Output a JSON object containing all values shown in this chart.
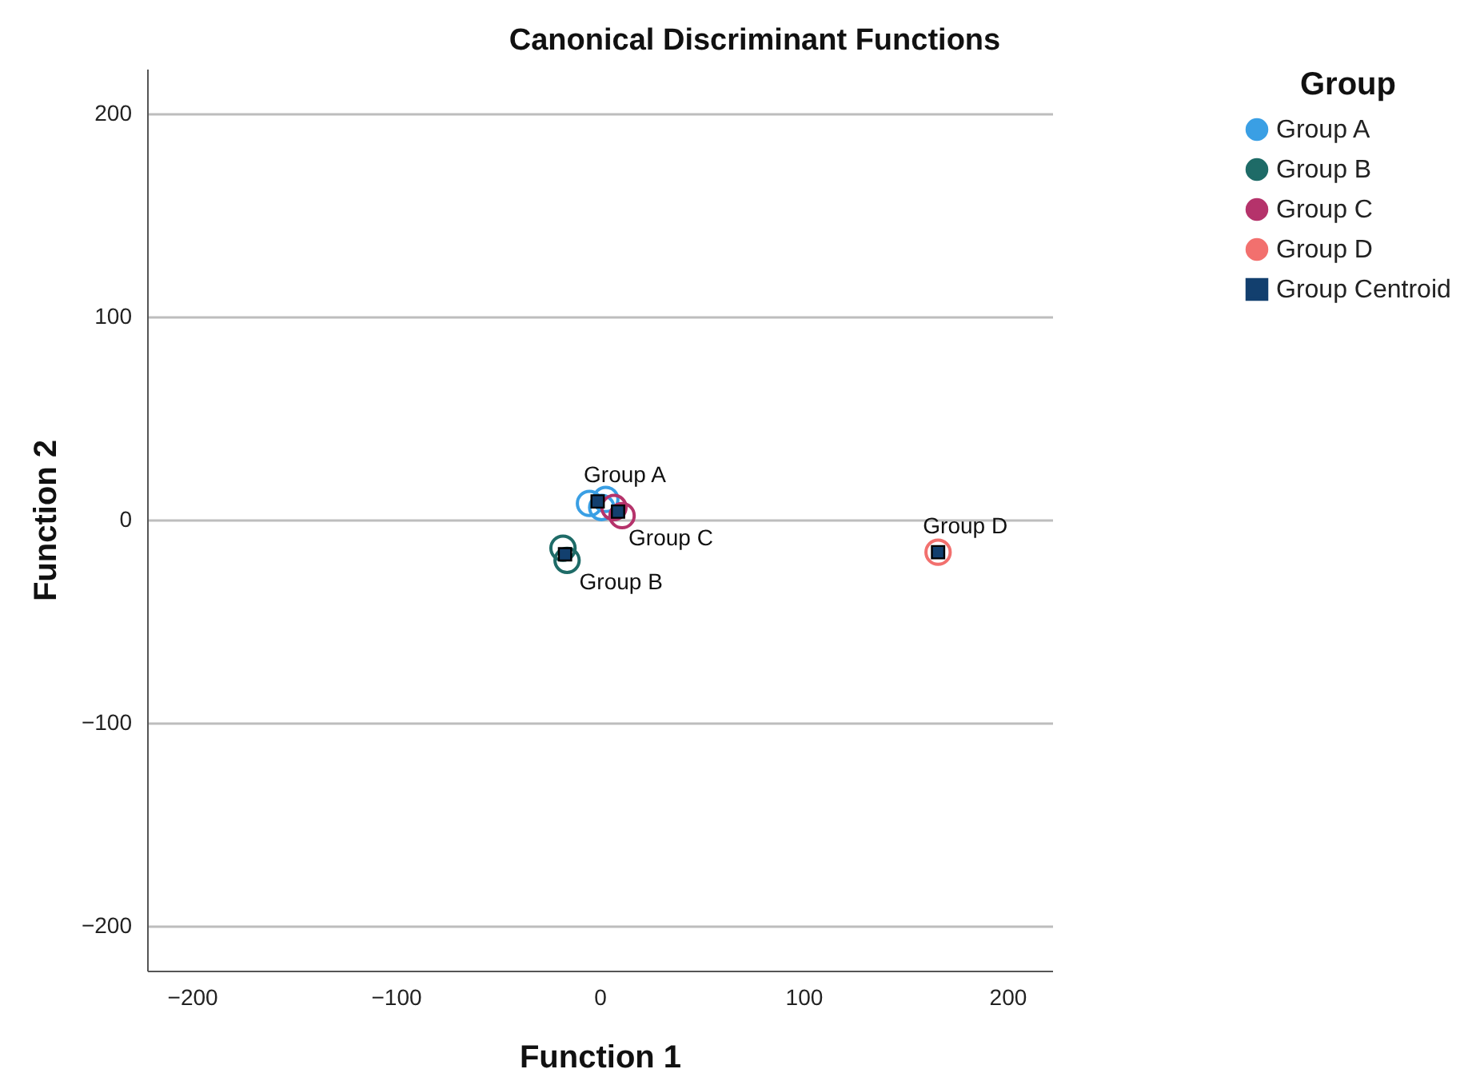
{
  "chart_data": {
    "type": "scatter",
    "title": "Canonical Discriminant Functions",
    "xlabel": "Function 1",
    "ylabel": "Function 2",
    "legend_title": "Group",
    "legend": "right",
    "grid": "y",
    "xlim": [
      -222,
      222
    ],
    "ylim": [
      -222,
      222
    ],
    "xticks": [
      -200,
      -100,
      0,
      100,
      200
    ],
    "yticks": [
      -200,
      -100,
      0,
      100,
      200
    ],
    "series": [
      {
        "name": "Group A",
        "color": "#3a9fe4",
        "marker": "circle",
        "x": [
          -5,
          3,
          1
        ],
        "values": [
          8,
          10,
          6
        ]
      },
      {
        "name": "Group B",
        "color": "#1e6b67",
        "marker": "circle",
        "x": [
          -18,
          -16
        ],
        "values": [
          -14,
          -20
        ]
      },
      {
        "name": "Group C",
        "color": "#b5336b",
        "marker": "circle",
        "x": [
          7,
          11
        ],
        "values": [
          6,
          2
        ]
      },
      {
        "name": "Group D",
        "color": "#f2706e",
        "marker": "circle",
        "x": [
          166
        ],
        "values": [
          -16
        ]
      },
      {
        "name": "Group Centroid",
        "color": "#123f6e",
        "marker": "square",
        "x": [
          -1,
          -17,
          9,
          166
        ],
        "values": [
          9,
          -17,
          4,
          -16
        ],
        "value_labels": [
          "Group A",
          "Group B",
          "Group C",
          "Group D"
        ]
      }
    ]
  }
}
